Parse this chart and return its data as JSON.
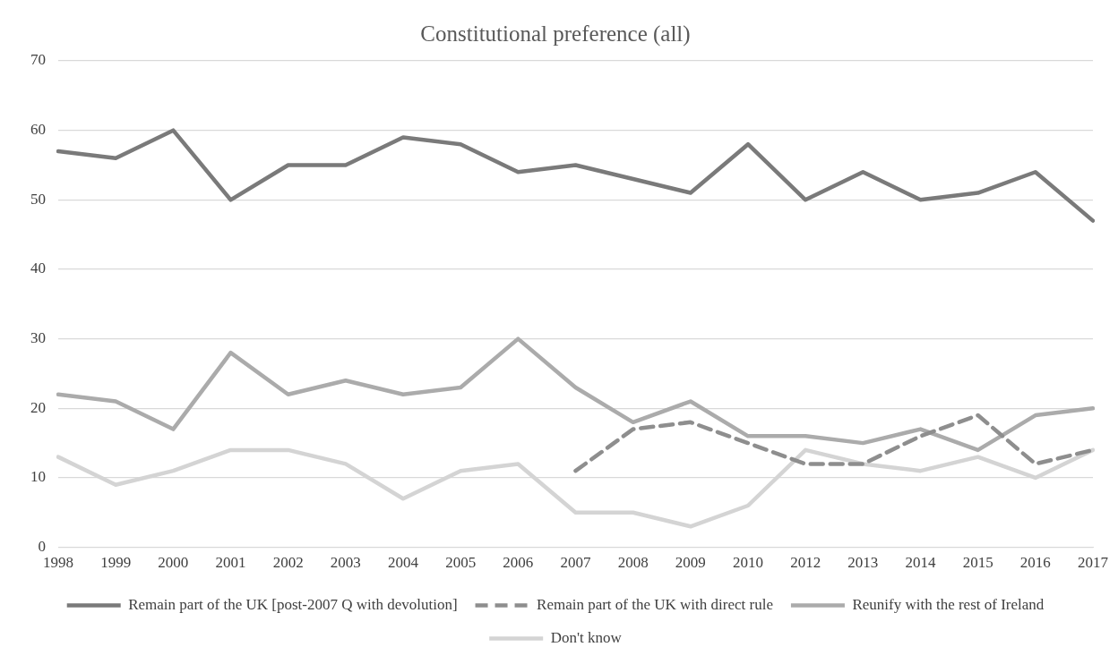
{
  "chart_data": {
    "type": "line",
    "title": "Constitutional preference (all)",
    "categories": [
      "1998",
      "1999",
      "2000",
      "2001",
      "2002",
      "2003",
      "2004",
      "2005",
      "2006",
      "2007",
      "2008",
      "2009",
      "2010",
      "2012",
      "2013",
      "2014",
      "2015",
      "2016",
      "2017"
    ],
    "series": [
      {
        "name": "Remain part of the UK [post-2007 Q with devolution]",
        "color": "#7a7a7a",
        "line_style": "solid",
        "values": [
          57,
          56,
          60,
          50,
          55,
          55,
          59,
          58,
          54,
          55,
          53,
          51,
          58,
          50,
          54,
          50,
          51,
          54,
          47
        ]
      },
      {
        "name": "Remain part of the UK with direct rule",
        "color": "#8e8e8e",
        "line_style": "dashed",
        "values": [
          null,
          null,
          null,
          null,
          null,
          null,
          null,
          null,
          null,
          11,
          17,
          18,
          15,
          12,
          12,
          16,
          19,
          12,
          14
        ]
      },
      {
        "name": "Reunify with the rest of Ireland",
        "color": "#ababab",
        "line_style": "solid",
        "values": [
          22,
          21,
          17,
          28,
          22,
          24,
          22,
          23,
          30,
          23,
          18,
          21,
          16,
          16,
          15,
          17,
          14,
          19,
          20
        ]
      },
      {
        "name": "Don't know",
        "color": "#d4d4d4",
        "line_style": "solid",
        "values": [
          13,
          9,
          11,
          14,
          14,
          12,
          7,
          11,
          12,
          5,
          5,
          3,
          6,
          14,
          12,
          11,
          13,
          10,
          14
        ]
      }
    ],
    "ylim": [
      0,
      70
    ],
    "yticks": [
      0,
      10,
      20,
      30,
      40,
      50,
      60,
      70
    ],
    "grid": "y",
    "legend": "bottom",
    "marker": "none"
  }
}
